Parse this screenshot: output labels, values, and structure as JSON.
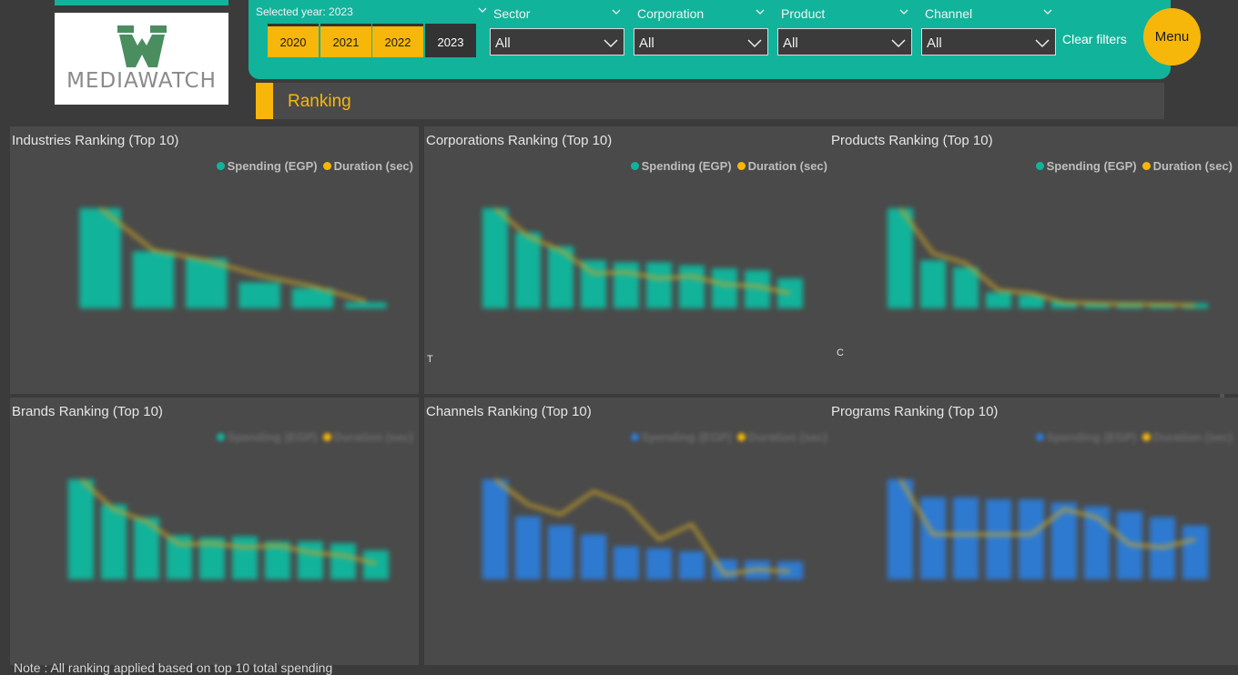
{
  "logo": {
    "text": "MEDIAWATCH"
  },
  "filters": {
    "selected_year_label": "Selected year: 2023",
    "years": [
      "2020",
      "2021",
      "2022",
      "2023"
    ],
    "active_year": "2023",
    "sector": {
      "label": "Sector",
      "value": "All"
    },
    "corporation": {
      "label": "Corporation",
      "value": "All"
    },
    "product": {
      "label": "Product",
      "value": "All"
    },
    "channel": {
      "label": "Channel",
      "value": "All"
    },
    "clear_label": "Clear filters",
    "menu_label": "Menu"
  },
  "section": {
    "title": "Ranking"
  },
  "legend": {
    "spending": "Spending (EGP)",
    "duration": "Duration (sec)"
  },
  "colors": {
    "teal": "#12b39b",
    "yellow": "#f7b70a",
    "blue": "#2e7ad1",
    "panel": "#4a4a4a",
    "background": "#3b3b3b"
  },
  "panels": {
    "industries": {
      "title": "Industries Ranking (Top 10)"
    },
    "corporations": {
      "title": "Corporations Ranking (Top 10)",
      "edge_label": "T"
    },
    "products": {
      "title": "Products Ranking (Top 10)",
      "edge_label": "C"
    },
    "brands": {
      "title": "Brands Ranking (Top 10)"
    },
    "channels": {
      "title": "Channels Ranking (Top 10)"
    },
    "programs": {
      "title": "Programs Ranking (Top 10)"
    }
  },
  "note": "Note : All ranking applied based on top 10 total spending",
  "chart_data": [
    {
      "type": "bar",
      "panel": "industries",
      "color": "#12b39b",
      "values": [
        100,
        57,
        50,
        26,
        20,
        6
      ],
      "line": [
        100,
        58,
        48,
        33,
        22,
        7
      ]
    },
    {
      "type": "bar",
      "panel": "corporations",
      "color": "#12b39b",
      "values": [
        100,
        76,
        62,
        48,
        46,
        46,
        43,
        40,
        38,
        30
      ],
      "line": [
        100,
        72,
        58,
        35,
        36,
        30,
        32,
        24,
        22,
        15
      ]
    },
    {
      "type": "bar",
      "panel": "products",
      "color": "#12b39b",
      "values": [
        100,
        48,
        41,
        16,
        13,
        7,
        6,
        6,
        5,
        5
      ],
      "line": [
        100,
        55,
        45,
        18,
        15,
        6,
        5,
        4,
        4,
        3
      ]
    },
    {
      "type": "bar",
      "panel": "brands",
      "color": "#12b39b",
      "values": [
        100,
        75,
        62,
        44,
        42,
        43,
        38,
        38,
        36,
        29
      ],
      "line": [
        100,
        70,
        58,
        35,
        36,
        32,
        34,
        27,
        24,
        16
      ]
    },
    {
      "type": "bar",
      "panel": "channels",
      "color": "#2e7ad1",
      "values": [
        100,
        63,
        54,
        45,
        33,
        31,
        28,
        20,
        19,
        18
      ],
      "line": [
        100,
        75,
        65,
        88,
        75,
        40,
        55,
        5,
        10,
        8
      ]
    },
    {
      "type": "bar",
      "panel": "programs",
      "color": "#2e7ad1",
      "values": [
        100,
        82,
        82,
        80,
        80,
        77,
        73,
        68,
        62,
        54
      ],
      "line": [
        100,
        45,
        45,
        45,
        45,
        70,
        62,
        35,
        32,
        40
      ]
    }
  ]
}
